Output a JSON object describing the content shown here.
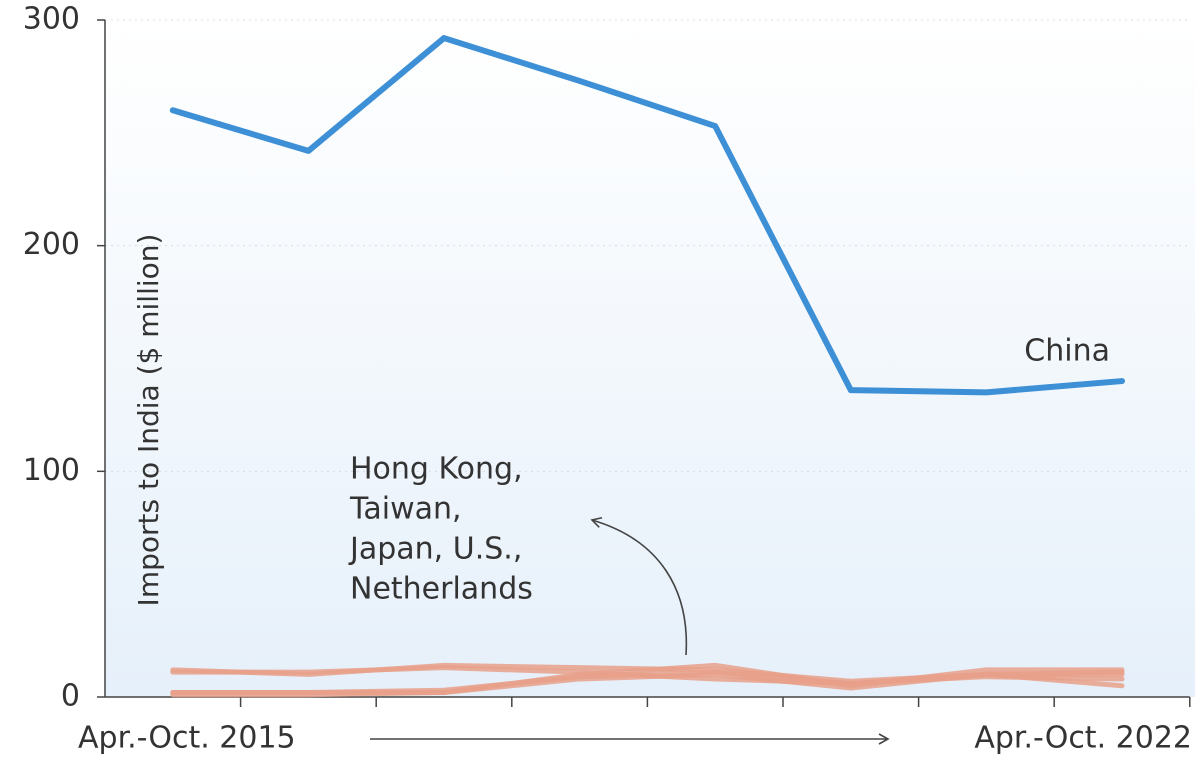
{
  "chart_data": {
    "type": "line",
    "y_label": "Imports to India ($ million)",
    "categories": [
      "Apr.-Oct. 2015",
      null,
      null,
      null,
      null,
      null,
      null,
      "Apr.-Oct. 2022"
    ],
    "series": [
      {
        "color": "#3d8fd6",
        "values": [
          260,
          242,
          292,
          273,
          253,
          136,
          135,
          140
        ]
      },
      {
        "color": "#e8a08a",
        "values": [
          12,
          10,
          14,
          13,
          12,
          7,
          10,
          10
        ]
      },
      {
        "color": "#e8a08a",
        "values": [
          2,
          2,
          2,
          10,
          14,
          5,
          12,
          12
        ]
      },
      {
        "color": "#e8a08a",
        "values": [
          1,
          1,
          2,
          8,
          10,
          4,
          10,
          5
        ]
      },
      {
        "color": "#e8a08a",
        "values": [
          11,
          11,
          13,
          11,
          8,
          6,
          9,
          8
        ]
      },
      {
        "color": "#e8a08a",
        "values": [
          2,
          2,
          3,
          9,
          11,
          6,
          10,
          11
        ]
      }
    ],
    "annotations": {
      "china": "China",
      "others": [
        "Hong Kong,",
        "Taiwan,",
        "Japan, U.S.,",
        "Netherlands"
      ]
    },
    "ylim": [
      0,
      300
    ],
    "yticks": [
      0,
      100,
      200,
      300
    ],
    "grid": true
  }
}
